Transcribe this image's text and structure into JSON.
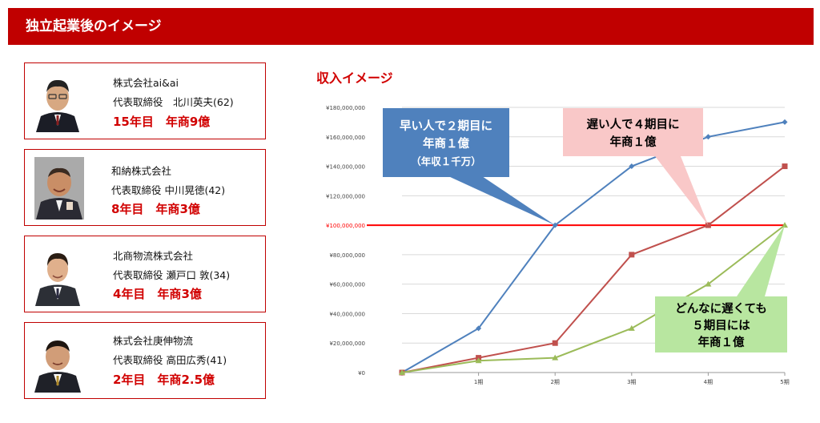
{
  "header": {
    "title": "独立起業後のイメージ"
  },
  "profiles": [
    {
      "company": "株式会社ai&ai",
      "ceo": "代表取締役　北川英夫(62)",
      "milestone": "15年目　年商9億"
    },
    {
      "company": "和納株式会社",
      "ceo": "代表取締役 中川晃徳(42)",
      "milestone": "8年目　年商3億"
    },
    {
      "company": "北商物流株式会社",
      "ceo": "代表取締役 瀬戸口 敦(34)",
      "milestone": "4年目　年商3億"
    },
    {
      "company": "株式会社庚伸物流",
      "ceo": "代表取締役 高田広秀(41)",
      "milestone": "2年目　年商2.5億"
    }
  ],
  "chart_title": "収入イメージ",
  "colors": {
    "brand_red": "#c00000",
    "series_blue": "#4f81bd",
    "series_red": "#c0504d",
    "series_green": "#9bbb59",
    "threshold_red": "#ff0000"
  },
  "chart_data": {
    "type": "line",
    "categories": [
      "",
      "1期",
      "2期",
      "3期",
      "4期",
      "5期"
    ],
    "y_tick_labels": [
      "¥0",
      "¥20,000,000",
      "¥40,000,000",
      "¥60,000,000",
      "¥80,000,000",
      "¥100,000,000",
      "¥120,000,000",
      "¥140,000,000",
      "¥160,000,000",
      "¥180,000,000"
    ],
    "ylim": [
      0,
      180000000
    ],
    "y_step": 20000000,
    "threshold": 100000000,
    "series": [
      {
        "values": [
          0,
          30000000,
          100000000,
          140000000,
          160000000,
          170000000
        ],
        "color": "#4f81bd",
        "marker": "diamond"
      },
      {
        "values": [
          0,
          10000000,
          20000000,
          80000000,
          100000000,
          140000000
        ],
        "color": "#c0504d",
        "marker": "square"
      },
      {
        "values": [
          0,
          8000000,
          10000000,
          30000000,
          60000000,
          100000000
        ],
        "color": "#9bbb59",
        "marker": "triangle"
      }
    ],
    "annotations": [
      {
        "lines": [
          "早い人で２期目に",
          "年商１億",
          "（年収１千万）"
        ],
        "fill": "#4f81bd",
        "text_color": "#ffffff"
      },
      {
        "lines": [
          "遅い人で４期目に",
          "年商１億"
        ],
        "fill": "#f9c8c8",
        "text_color": "#000000"
      },
      {
        "lines": [
          "どんなに遅くても",
          "５期目には",
          "年商１億"
        ],
        "fill": "#b8e6a0",
        "text_color": "#000000"
      }
    ]
  }
}
